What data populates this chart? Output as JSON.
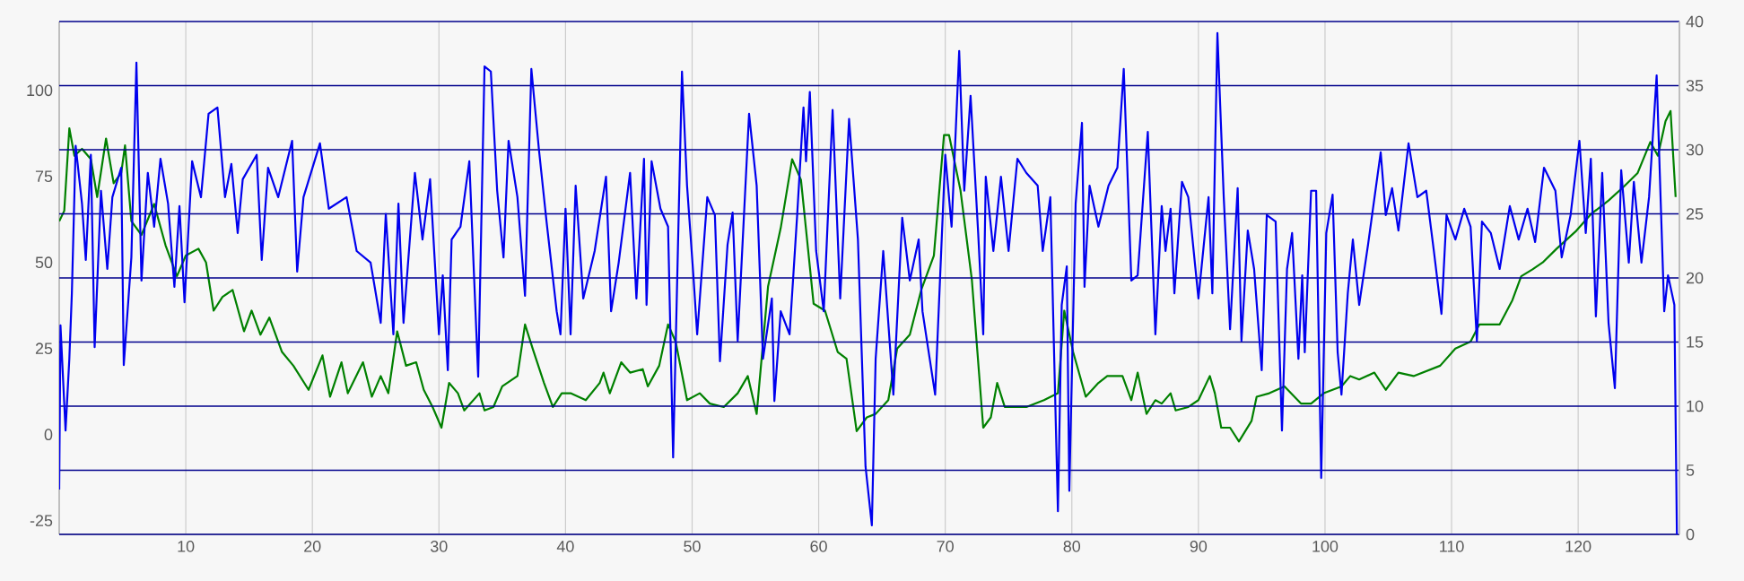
{
  "chart_data": {
    "type": "line",
    "xlim": [
      0,
      128
    ],
    "xticks": [
      10,
      20,
      30,
      40,
      50,
      60,
      70,
      80,
      90,
      100,
      110,
      120
    ],
    "ylim": [
      -29,
      120
    ],
    "yticks": [
      -25,
      0,
      25,
      50,
      75,
      100
    ],
    "y2lim": [
      0,
      40
    ],
    "y2ticks": [
      0,
      5,
      10,
      15,
      20,
      25,
      30,
      35,
      40
    ],
    "grid": true,
    "series": [
      {
        "color": "#008000",
        "axis": "y",
        "x": [
          0,
          0.4,
          0.8,
          1.2,
          1.8,
          2.5,
          3,
          3.7,
          4.3,
          4.9,
          5.2,
          5.7,
          6.5,
          7.5,
          8.4,
          9.3,
          10,
          11,
          11.6,
          12.2,
          12.9,
          13.7,
          14.6,
          15.2,
          15.9,
          16.6,
          17.6,
          18.5,
          19.7,
          20.8,
          21.4,
          22.3,
          22.8,
          24,
          24.7,
          25.4,
          26,
          26.7,
          27.4,
          28.2,
          28.8,
          29.5,
          30.2,
          30.8,
          31.5,
          32,
          33.2,
          33.6,
          34.3,
          35,
          36.2,
          36.8,
          37.4,
          38.3,
          39,
          39.7,
          40.4,
          41.6,
          42.7,
          43,
          43.5,
          44.4,
          45.1,
          46.1,
          46.5,
          47.4,
          48.1,
          48.7,
          49.6,
          50.6,
          51.4,
          52.5,
          53.6,
          54.4,
          55.1,
          56,
          57,
          57.9,
          58.6,
          59.6,
          60.5,
          61.5,
          62.2,
          63,
          63.8,
          64.5,
          65.5,
          66.2,
          67.2,
          68.1,
          69.1,
          69.9,
          70.3,
          71.2,
          72.1,
          73,
          73.6,
          74.1,
          74.7,
          76.4,
          77.8,
          78.9,
          79.4,
          80.1,
          81.1,
          82.1,
          82.8,
          84,
          84.7,
          85.2,
          85.9,
          86.6,
          87.1,
          87.8,
          88.2,
          89.2,
          90,
          90.9,
          91.3,
          91.8,
          92.5,
          93.2,
          94.2,
          94.6,
          95.6,
          96.8,
          98.1,
          98.9,
          99.9,
          101.3,
          102,
          102.7,
          103.9,
          104.8,
          105.8,
          107,
          109.1,
          110.3,
          111.5,
          112.2,
          113.8,
          114.8,
          115.5,
          116.4,
          117.2,
          118.3,
          119.8,
          121,
          122.4,
          123.6,
          124.7,
          125.7,
          126.3,
          126.9,
          127.3,
          127.7
        ],
        "values": [
          62,
          65,
          89,
          81,
          83,
          80,
          69,
          86,
          73,
          76,
          84,
          62,
          58,
          67,
          55,
          46,
          52,
          54,
          50,
          36,
          40,
          42,
          30,
          36,
          29,
          34,
          24,
          20,
          13,
          23,
          11,
          21,
          12,
          21,
          11,
          17,
          12,
          30,
          20,
          21,
          13,
          8,
          2,
          15,
          12,
          7,
          12,
          7,
          8,
          14,
          17,
          32,
          25,
          15,
          8,
          12,
          12,
          10,
          15,
          18,
          12,
          21,
          18,
          19,
          14,
          20,
          32,
          27,
          10,
          12,
          9,
          8,
          12,
          17,
          6,
          43,
          60,
          80,
          74,
          38,
          36,
          24,
          22,
          1,
          5,
          6,
          10,
          25,
          29,
          42,
          52,
          87,
          87,
          71,
          45,
          2,
          5,
          15,
          8,
          8,
          10,
          12,
          36,
          24,
          11,
          15,
          17,
          17,
          10,
          18,
          6,
          10,
          9,
          12,
          7,
          8,
          10,
          17,
          12,
          2,
          2,
          -2,
          4,
          11,
          12,
          14,
          9,
          9,
          12,
          14,
          17,
          16,
          18,
          13,
          18,
          17,
          20,
          25,
          27,
          32,
          32,
          39,
          46,
          48,
          50,
          54,
          59,
          64,
          68,
          72,
          76,
          85,
          81,
          91,
          94,
          69
        ]
      },
      {
        "color": "#0000ee",
        "axis": "y2",
        "x": [
          0,
          0.1,
          0.5,
          0.8,
          1,
          1.3,
          1.8,
          2.1,
          2.5,
          2.8,
          3.3,
          3.8,
          4.2,
          4.9,
          5.1,
          5.7,
          6.1,
          6.5,
          7,
          7.5,
          8,
          8.6,
          9.1,
          9.5,
          9.9,
          10.5,
          11.2,
          11.8,
          12.5,
          13.1,
          13.6,
          14.1,
          14.5,
          15.6,
          16,
          16.5,
          17.3,
          18.4,
          18.8,
          19.3,
          20.6,
          21.3,
          22.7,
          23.5,
          24.6,
          25.4,
          25.8,
          26.4,
          26.8,
          27.2,
          28.1,
          28.7,
          29.3,
          30,
          30.3,
          30.7,
          31,
          31.7,
          32.4,
          33.1,
          33.6,
          34.1,
          34.6,
          35.1,
          35.5,
          36.2,
          36.8,
          37.3,
          37.9,
          38.5,
          39.3,
          39.6,
          40,
          40.4,
          40.8,
          41.4,
          42.3,
          43.2,
          43.6,
          44.2,
          45.1,
          45.6,
          46.2,
          46.4,
          46.8,
          47.5,
          48.1,
          48.5,
          49.2,
          49.6,
          50.1,
          50.4,
          51.2,
          51.8,
          52.2,
          52.8,
          53.2,
          53.6,
          54.5,
          55.1,
          55.6,
          56.3,
          56.5,
          57,
          57.7,
          58.3,
          58.8,
          59,
          59.3,
          59.8,
          60.4,
          61.1,
          61.7,
          62.4,
          63.1,
          63.7,
          64.2,
          64.5,
          65.1,
          65.9,
          66.6,
          67.2,
          67.9,
          68.2,
          69.2,
          70,
          70.5,
          71.1,
          71.5,
          72,
          72.6,
          73,
          73.2,
          73.8,
          74.4,
          75,
          75.7,
          76.4,
          77.3,
          77.7,
          78.3,
          78.9,
          79.2,
          79.6,
          79.8,
          80.3,
          80.8,
          81,
          81.4,
          82.1,
          82.9,
          83.6,
          84.1,
          84.7,
          85.2,
          86,
          86.6,
          87.1,
          87.4,
          87.8,
          88.1,
          88.7,
          89.2,
          90,
          90.8,
          91.1,
          91.5,
          92,
          92.5,
          93.1,
          93.4,
          93.9,
          94.4,
          95,
          95.4,
          96.1,
          96.6,
          97,
          97.4,
          97.9,
          98.2,
          98.4,
          98.9,
          99.3,
          99.7,
          100.1,
          100.6,
          101,
          101.3,
          101.8,
          102.2,
          102.7,
          103.4,
          104.4,
          104.8,
          105.3,
          105.8,
          106.6,
          107.3,
          108,
          108.6,
          109.2,
          109.6,
          110.3,
          111,
          111.5,
          112,
          112.4,
          113.1,
          113.8,
          114.6,
          115.3,
          116,
          116.6,
          117.3,
          118.2,
          118.7,
          119.4,
          120.1,
          120.6,
          121,
          121.4,
          121.9,
          122.4,
          122.9,
          123.4,
          124,
          124.4,
          125,
          125.6,
          126.2,
          126.8,
          127.1,
          127.6,
          127.8
        ],
        "values": [
          3.5,
          16.3,
          8.1,
          13.7,
          18.8,
          30.3,
          25.8,
          21.4,
          29.6,
          14.6,
          26.8,
          20.7,
          26.3,
          28.6,
          13.2,
          21.6,
          36.8,
          19.8,
          28.2,
          24,
          29.3,
          25.8,
          19.3,
          25.6,
          18.1,
          29.1,
          26.3,
          32.8,
          33.3,
          26.3,
          28.9,
          23.5,
          27.7,
          29.6,
          21.4,
          28.6,
          26.3,
          30.7,
          20.5,
          26.3,
          30.5,
          25.4,
          26.3,
          22.1,
          21.2,
          16.5,
          25,
          15.6,
          25.8,
          16.5,
          28.2,
          23,
          27.7,
          15.6,
          20.2,
          12.8,
          23,
          24,
          29.1,
          12.3,
          36.5,
          36.1,
          26.8,
          21.6,
          30.7,
          26.3,
          18.6,
          36.3,
          30,
          24.4,
          17.4,
          15.6,
          25.4,
          15.6,
          27.2,
          18.4,
          22.1,
          27.9,
          17.4,
          21.2,
          28.2,
          18.4,
          29.3,
          17.9,
          29.1,
          25.4,
          24,
          6,
          36.1,
          27.2,
          20.2,
          15.6,
          26.3,
          24.9,
          13.5,
          22.6,
          25.1,
          15.1,
          32.8,
          27.2,
          13.7,
          18.4,
          10.4,
          17.4,
          15.6,
          24.9,
          33.3,
          29.1,
          34.5,
          22.1,
          17.4,
          33.1,
          18.4,
          32.4,
          23,
          5.3,
          0.7,
          13.7,
          22.1,
          10.9,
          24.7,
          19.8,
          23,
          17.4,
          10.9,
          29.6,
          24,
          37.7,
          26.8,
          34.2,
          23.5,
          15.6,
          27.9,
          22.1,
          27.9,
          22.1,
          29.3,
          28.2,
          27.2,
          22.1,
          26.3,
          1.8,
          17.9,
          20.9,
          3.4,
          25.8,
          32.1,
          19.3,
          27.2,
          24,
          27.2,
          28.6,
          36.3,
          19.8,
          20.2,
          31.4,
          15.6,
          25.6,
          22.1,
          25.4,
          18.8,
          27.5,
          26.3,
          18.4,
          26.3,
          18.8,
          39.1,
          26.3,
          16,
          27,
          15.1,
          23.7,
          20.7,
          12.8,
          24.9,
          24.4,
          8.1,
          20.7,
          23.5,
          13.7,
          20.2,
          14.2,
          26.8,
          26.8,
          4.4,
          23.5,
          26.5,
          14.2,
          10.9,
          18.8,
          23,
          17.9,
          22.6,
          29.8,
          24.9,
          27,
          23.7,
          30.5,
          26.3,
          26.8,
          22.1,
          17.2,
          24.9,
          23,
          25.4,
          24,
          15.1,
          24.4,
          23.5,
          20.7,
          25.6,
          23,
          25.4,
          22.8,
          28.6,
          26.8,
          21.6,
          24.9,
          30.7,
          23.5,
          29.3,
          17,
          28.2,
          16.5,
          11.4,
          28.4,
          21.2,
          27.5,
          21.2,
          26.3,
          35.8,
          17.4,
          20.2,
          17.9,
          0
        ]
      }
    ]
  }
}
